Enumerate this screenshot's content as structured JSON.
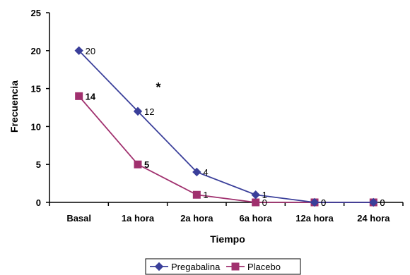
{
  "chart_data": {
    "type": "line",
    "xlabel": "Tiempo",
    "ylabel": "Frecuencia",
    "ylim": [
      0,
      25
    ],
    "yticks": [
      "0",
      "5",
      "10",
      "15",
      "20",
      "25"
    ],
    "categories": [
      "Basal",
      "1a hora",
      "2a hora",
      "6a hora",
      "12a hora",
      "24 hora"
    ],
    "grid": false,
    "legend_position": "bottom",
    "annotation": "*",
    "series": [
      {
        "name": "Pregabalina",
        "color": "#3a3f9a",
        "marker": "diamond",
        "values": [
          20,
          12,
          4,
          1,
          0,
          0
        ],
        "labels": [
          "20",
          "12",
          "4",
          "1",
          "0",
          "0"
        ]
      },
      {
        "name": "Placebo",
        "color": "#a0306e",
        "marker": "square",
        "values": [
          14,
          5,
          1,
          0,
          0,
          0
        ],
        "labels": [
          "14",
          "5",
          "1",
          "0",
          "0",
          "0"
        ]
      }
    ]
  }
}
